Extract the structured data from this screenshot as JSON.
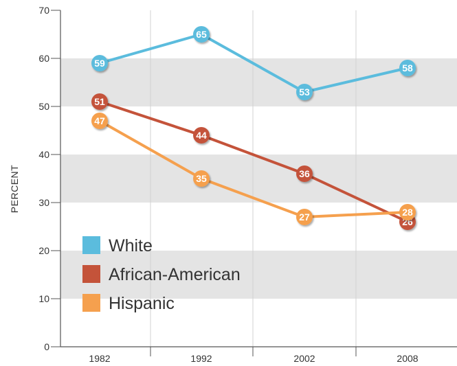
{
  "chart_data": {
    "type": "line",
    "title": "",
    "xlabel": "",
    "ylabel": "PERCENT",
    "categories": [
      "1982",
      "1992",
      "2002",
      "2008"
    ],
    "ylim": [
      0,
      70
    ],
    "yticks": [
      "0",
      "10",
      "20",
      "30",
      "40",
      "50",
      "60",
      "70"
    ],
    "grid": "alternating horizontal bands",
    "legend_position": "bottom-left",
    "series": [
      {
        "name": "White",
        "color": "#5bbcdd",
        "values": [
          59,
          65,
          53,
          58
        ]
      },
      {
        "name": "African-American",
        "color": "#c4533a",
        "values": [
          51,
          44,
          36,
          26
        ]
      },
      {
        "name": "Hispanic",
        "color": "#f5a04e",
        "values": [
          47,
          35,
          27,
          28
        ]
      }
    ]
  }
}
